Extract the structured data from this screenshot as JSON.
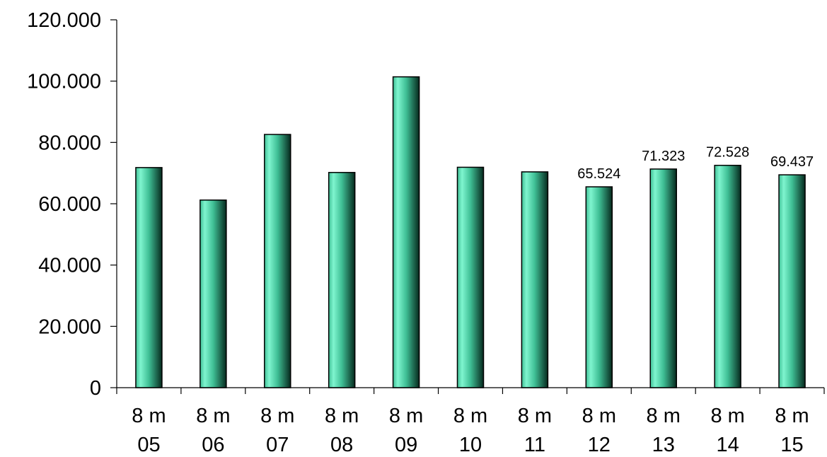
{
  "chart_data": {
    "type": "bar",
    "categories": [
      [
        "8 m",
        "05"
      ],
      [
        "8 m",
        "06"
      ],
      [
        "8 m",
        "07"
      ],
      [
        "8 m",
        "08"
      ],
      [
        "8 m",
        "09"
      ],
      [
        "8 m",
        "10"
      ],
      [
        "8 m",
        "11"
      ],
      [
        "8 m",
        "12"
      ],
      [
        "8 m",
        "13"
      ],
      [
        "8 m",
        "14"
      ],
      [
        "8 m",
        "15"
      ]
    ],
    "values": [
      71800,
      61200,
      82600,
      70200,
      101400,
      71900,
      70400,
      65524,
      71323,
      72528,
      69437
    ],
    "data_labels": [
      "",
      "",
      "",
      "",
      "",
      "",
      "",
      "65.524",
      "71.323",
      "72.528",
      "69.437"
    ],
    "y_ticks": [
      0,
      20000,
      40000,
      60000,
      80000,
      100000,
      120000
    ],
    "y_tick_labels": [
      "0",
      "20.000",
      "40.000",
      "60.000",
      "80.000",
      "100.000",
      "120.000"
    ],
    "ylim": [
      0,
      120000
    ],
    "title": "",
    "xlabel": "",
    "ylabel": "",
    "grid": false,
    "legend": "none",
    "colors": {
      "bar_light": "#7ff5cf",
      "bar_mid": "#3fbf95",
      "bar_dark": "#062a1e",
      "axis": "#000000"
    }
  }
}
